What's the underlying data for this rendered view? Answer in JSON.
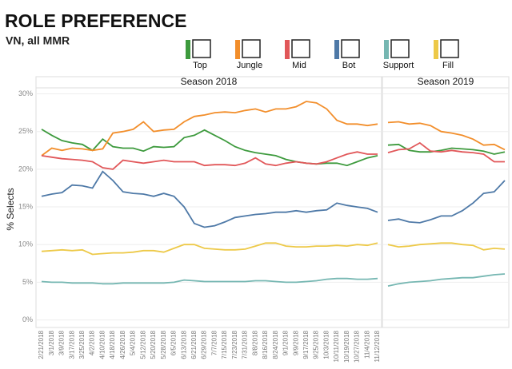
{
  "chart_data": {
    "type": "line",
    "title": "ROLE PREFERENCE",
    "subtitle": "VN, all MMR",
    "y_label": "% Selects",
    "ylim": [
      -1,
      30.8
    ],
    "yticks": [
      {
        "value": 0,
        "label": "0%"
      },
      {
        "value": 5,
        "label": "5%"
      },
      {
        "value": 10,
        "label": "10%"
      },
      {
        "value": 15,
        "label": "15%"
      },
      {
        "value": 20,
        "label": "20%"
      },
      {
        "value": 25,
        "label": "25%"
      },
      {
        "value": 30,
        "label": "30%"
      }
    ],
    "grid": true,
    "legend": [
      {
        "name": "Top",
        "color": "#3d9a3d"
      },
      {
        "name": "Jungle",
        "color": "#f28e2b"
      },
      {
        "name": "Mid",
        "color": "#e15759"
      },
      {
        "name": "Bot",
        "color": "#4e79a7"
      },
      {
        "name": "Support",
        "color": "#76b7b2"
      },
      {
        "name": "Fill",
        "color": "#edc948"
      }
    ],
    "panels": [
      {
        "title": "Season 2018",
        "categories": [
          "2/21/2018",
          "3/1/2018",
          "3/9/2018",
          "3/17/2018",
          "3/25/2018",
          "4/2/2018",
          "4/10/2018",
          "4/18/2018",
          "4/26/2018",
          "5/4/2018",
          "5/12/2018",
          "5/20/2018",
          "5/28/2018",
          "6/5/2018",
          "6/13/2018",
          "6/21/2018",
          "6/29/2018",
          "7/7/2018",
          "7/15/2018",
          "7/23/2018",
          "7/31/2018",
          "8/8/2018",
          "8/16/2018",
          "8/24/2018",
          "9/1/2018",
          "9/9/2018",
          "9/17/2018",
          "9/25/2018",
          "10/3/2018",
          "10/11/2018",
          "10/19/2018",
          "10/27/2018",
          "11/4/2018",
          "11/12/2018"
        ],
        "series": [
          {
            "values": [
              25.3,
              24.5,
              23.8,
              23.5,
              23.3,
              22.5,
              24.0,
              23.0,
              22.8,
              22.8,
              22.4,
              23.0,
              22.9,
              23.0,
              24.2,
              24.5,
              25.2,
              24.5,
              23.8,
              23.0,
              22.5,
              22.2,
              22.0,
              21.8,
              21.3,
              21.0,
              20.8,
              20.7,
              20.8,
              20.8,
              20.5,
              21.0,
              21.5,
              21.8
            ]
          },
          {
            "values": [
              21.8,
              22.8,
              22.5,
              22.8,
              22.7,
              22.5,
              22.7,
              24.8,
              25.0,
              25.3,
              26.3,
              25.0,
              25.2,
              25.3,
              26.3,
              27.0,
              27.2,
              27.5,
              27.6,
              27.5,
              27.8,
              28.0,
              27.6,
              28.0,
              28.0,
              28.3,
              29.0,
              28.8,
              28.0,
              26.5,
              26.0,
              26.0,
              25.8,
              26.0
            ]
          },
          {
            "values": [
              21.8,
              21.6,
              21.4,
              21.3,
              21.2,
              21.0,
              20.2,
              20.0,
              21.2,
              21.0,
              20.8,
              21.0,
              21.2,
              21.0,
              21.0,
              21.0,
              20.5,
              20.6,
              20.6,
              20.5,
              20.8,
              21.5,
              20.7,
              20.5,
              20.8,
              21.0,
              20.8,
              20.7,
              21.0,
              21.5,
              22.0,
              22.3,
              22.0,
              22.0
            ]
          },
          {
            "values": [
              16.4,
              16.7,
              16.9,
              17.9,
              17.8,
              17.5,
              19.7,
              18.5,
              17.0,
              16.8,
              16.7,
              16.4,
              16.8,
              16.4,
              15.0,
              12.8,
              12.3,
              12.5,
              13.0,
              13.6,
              13.8,
              14.0,
              14.1,
              14.3,
              14.3,
              14.5,
              14.3,
              14.5,
              14.6,
              15.5,
              15.2,
              15.0,
              14.8,
              14.3
            ]
          },
          {
            "values": [
              5.1,
              5.0,
              5.0,
              4.9,
              4.9,
              4.9,
              4.8,
              4.8,
              4.9,
              4.9,
              4.9,
              4.9,
              4.9,
              5.0,
              5.3,
              5.2,
              5.1,
              5.1,
              5.1,
              5.1,
              5.1,
              5.2,
              5.2,
              5.1,
              5.0,
              5.0,
              5.1,
              5.2,
              5.4,
              5.5,
              5.5,
              5.4,
              5.4,
              5.5
            ]
          },
          {
            "values": [
              9.1,
              9.2,
              9.3,
              9.2,
              9.3,
              8.7,
              8.8,
              8.9,
              8.9,
              9.0,
              9.2,
              9.2,
              9.0,
              9.5,
              10.0,
              10.0,
              9.5,
              9.4,
              9.3,
              9.3,
              9.4,
              9.8,
              10.2,
              10.2,
              9.8,
              9.7,
              9.7,
              9.8,
              9.8,
              9.9,
              9.8,
              10.0,
              9.9,
              10.2
            ]
          }
        ]
      },
      {
        "title": "Season 2019",
        "categories": [
          null,
          null,
          null,
          null,
          null,
          null,
          null,
          null,
          null,
          null,
          null,
          null
        ],
        "series": [
          {
            "values": [
              23.2,
              23.3,
              22.5,
              22.3,
              22.3,
              22.5,
              22.8,
              22.7,
              22.6,
              22.4,
              22.0,
              22.3
            ]
          },
          {
            "values": [
              26.2,
              26.3,
              26.0,
              26.1,
              25.8,
              25.0,
              24.8,
              24.5,
              24.0,
              23.2,
              23.3,
              22.6
            ]
          },
          {
            "values": [
              22.2,
              22.6,
              22.7,
              23.5,
              22.4,
              22.3,
              22.5,
              22.3,
              22.2,
              22.0,
              21.0,
              21.0
            ]
          },
          {
            "values": [
              13.2,
              13.4,
              13.0,
              12.9,
              13.3,
              13.8,
              13.8,
              14.5,
              15.5,
              16.8,
              17.0,
              18.5
            ]
          },
          {
            "values": [
              4.5,
              4.8,
              5.0,
              5.1,
              5.2,
              5.4,
              5.5,
              5.6,
              5.6,
              5.8,
              6.0,
              6.1
            ]
          },
          {
            "values": [
              10.0,
              9.7,
              9.8,
              10.0,
              10.1,
              10.2,
              10.2,
              10.0,
              9.9,
              9.3,
              9.5,
              9.4
            ]
          }
        ]
      }
    ]
  }
}
